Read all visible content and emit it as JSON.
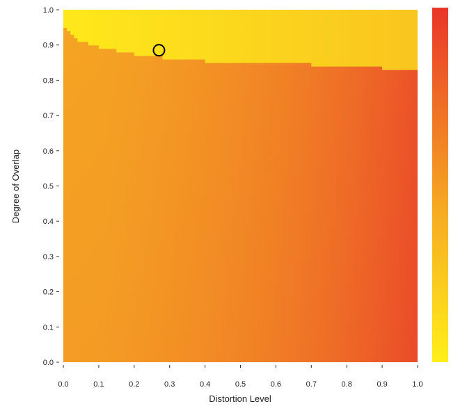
{
  "chart_data": {
    "type": "heatmap",
    "title": "",
    "xlabel": "Distortion Level",
    "ylabel": "Degree of Overlap",
    "xlim": [
      0.0,
      1.0
    ],
    "ylim": [
      0.0,
      1.0
    ],
    "x_ticks": [
      "0.0",
      "0.1",
      "0.2",
      "0.3",
      "0.4",
      "0.5",
      "0.6",
      "0.7",
      "0.8",
      "0.9",
      "1.0"
    ],
    "y_ticks": [
      "0.0",
      "0.1",
      "0.2",
      "0.3",
      "0.4",
      "0.5",
      "0.6",
      "0.7",
      "0.8",
      "0.9",
      "1.0"
    ],
    "grid": false,
    "colorscale": {
      "low_color": "#ffef1a",
      "mid_color": "#f5a623",
      "high_color": "#e8362a",
      "position": "right",
      "tick_labels": []
    },
    "overlap_boundary": {
      "x": [
        0.0,
        0.02,
        0.05,
        0.1,
        0.15,
        0.2,
        0.25,
        0.3,
        0.35,
        0.4,
        0.45,
        0.5,
        0.55,
        0.6,
        0.65,
        0.7,
        0.75,
        0.8,
        0.85,
        0.9,
        0.95,
        1.0
      ],
      "y": [
        0.96,
        0.93,
        0.91,
        0.895,
        0.885,
        0.875,
        0.868,
        0.862,
        0.858,
        0.855,
        0.853,
        0.852,
        0.85,
        0.848,
        0.846,
        0.845,
        0.843,
        0.84,
        0.837,
        0.835,
        0.833,
        0.83
      ]
    },
    "marker": {
      "x": 0.27,
      "y": 0.885,
      "shape": "circle",
      "color": "#000000"
    }
  }
}
